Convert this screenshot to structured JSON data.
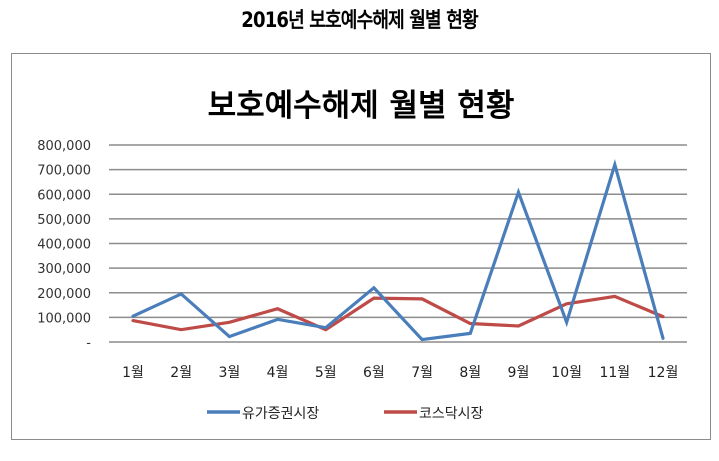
{
  "page": {
    "title": "2016년 보호예수해제 월별 현황"
  },
  "colors": {
    "series_blue": "#4A7EBB",
    "series_red": "#BE4B48",
    "gridline": "#8c8c8c",
    "border": "#8c8c8c"
  },
  "chart_data": {
    "type": "line",
    "title": "보호예수해제 월별 현황",
    "xlabel": "",
    "ylabel": "",
    "categories": [
      "1월",
      "2월",
      "3월",
      "4월",
      "5월",
      "6월",
      "7월",
      "8월",
      "9월",
      "10월",
      "11월",
      "12월"
    ],
    "series": [
      {
        "name": "유가증권시장",
        "color": "#4A7EBB",
        "values": [
          105000,
          195000,
          22000,
          92000,
          58000,
          220000,
          10000,
          35000,
          608000,
          80000,
          720000,
          15000
        ]
      },
      {
        "name": "코스닥시장",
        "color": "#BE4B48",
        "values": [
          87000,
          50000,
          80000,
          135000,
          50000,
          178000,
          175000,
          75000,
          65000,
          155000,
          185000,
          103000
        ]
      }
    ],
    "ylim": [
      0,
      800000
    ],
    "yticks": [
      0,
      100000,
      200000,
      300000,
      400000,
      500000,
      600000,
      700000,
      800000
    ],
    "ytick_labels": [
      "-",
      "100,000",
      "200,000",
      "300,000",
      "400,000",
      "500,000",
      "600,000",
      "700,000",
      "800,000"
    ],
    "grid": true,
    "legend_position": "bottom"
  }
}
